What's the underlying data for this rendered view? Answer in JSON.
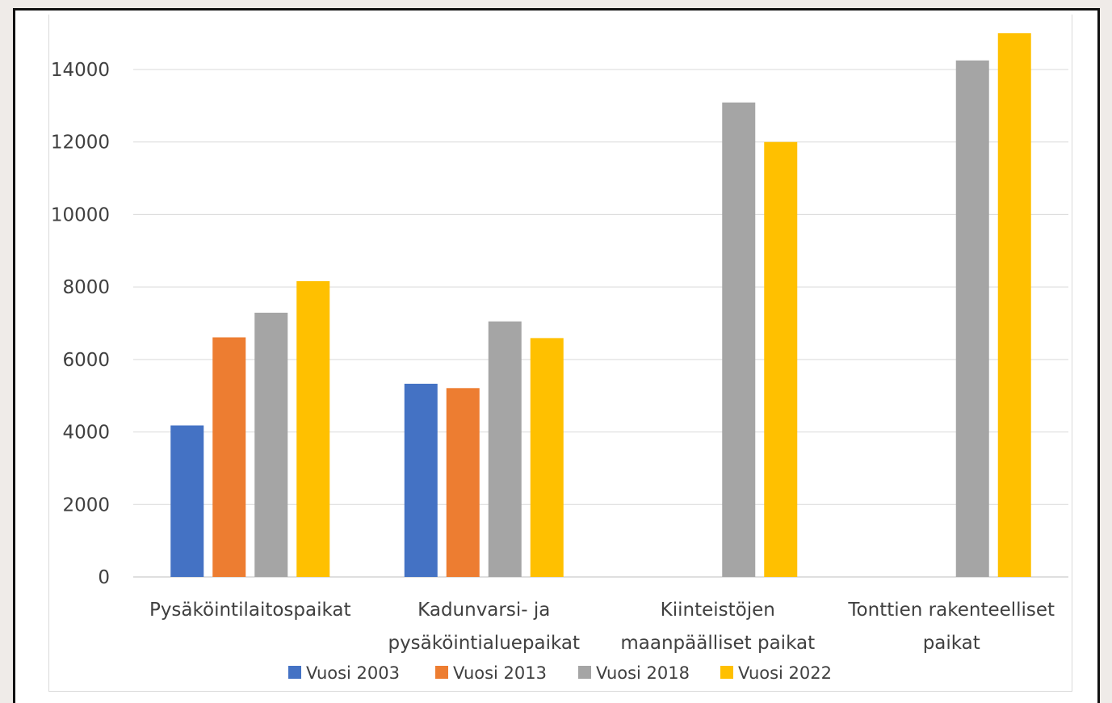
{
  "chart_data": {
    "type": "bar",
    "title": "",
    "xlabel": "",
    "ylabel": "",
    "categories": [
      [
        "Pysäköintilaitospaikat"
      ],
      [
        "Kadunvarsi- ja",
        "pysäköintialuepaikat"
      ],
      [
        "Kiinteistöjen",
        "maanpäälliset paikat"
      ],
      [
        "Tonttien rakenteelliset",
        "paikat"
      ]
    ],
    "series": [
      {
        "name": "Vuosi 2003",
        "color": "#4472c4",
        "values": [
          4180,
          5330,
          null,
          null
        ]
      },
      {
        "name": "Vuosi 2013",
        "color": "#ed7d31",
        "values": [
          6610,
          5210,
          null,
          null
        ]
      },
      {
        "name": "Vuosi 2018",
        "color": "#a5a5a5",
        "values": [
          7290,
          7050,
          13090,
          14250
        ]
      },
      {
        "name": "Vuosi 2022",
        "color": "#ffc000",
        "values": [
          8160,
          6590,
          12000,
          15000
        ]
      }
    ],
    "ylim": [
      0,
      15000
    ],
    "yticks": [
      "0",
      "2000",
      "4000",
      "6000",
      "8000",
      "10000",
      "12000",
      "14000"
    ],
    "ytick_values": [
      0,
      2000,
      4000,
      6000,
      8000,
      10000,
      12000,
      14000
    ],
    "grid": true,
    "legend_position": "bottom"
  }
}
